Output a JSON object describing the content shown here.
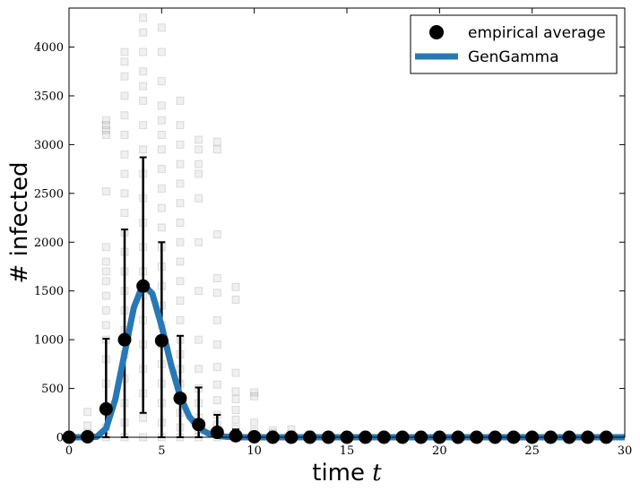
{
  "chart_data": {
    "type": "scatter",
    "xlabel": "time",
    "xlabel_var": "t",
    "ylabel": "# infected",
    "xlim": [
      0,
      30
    ],
    "ylim": [
      0,
      4400
    ],
    "xticks": [
      "0",
      "5",
      "10",
      "15",
      "20",
      "25",
      "30"
    ],
    "yticks": [
      "0",
      "500",
      "1000",
      "1500",
      "2000",
      "2500",
      "3000",
      "3500",
      "4000"
    ],
    "grid": false,
    "legend_position": "top-right",
    "colors": {
      "gengamma": "#2878b5",
      "average": "#000000",
      "samples": "#000000"
    },
    "series": [
      {
        "name": "empirical average",
        "style": "markers",
        "x": [
          0,
          1,
          2,
          3,
          4,
          5,
          6,
          7,
          8,
          9,
          10,
          11,
          12,
          13,
          14,
          15,
          16,
          17,
          18,
          19,
          20,
          21,
          22,
          23,
          24,
          25,
          26,
          27,
          28,
          29
        ],
        "values": [
          0,
          5,
          290,
          1000,
          1550,
          990,
          400,
          130,
          50,
          15,
          5,
          0,
          0,
          0,
          0,
          0,
          0,
          0,
          0,
          0,
          0,
          0,
          0,
          0,
          0,
          0,
          0,
          0,
          0,
          0
        ],
        "err_low": [
          0,
          0,
          0,
          0,
          250,
          0,
          0,
          0,
          0,
          0,
          0,
          0,
          0,
          0,
          0,
          0,
          0,
          0,
          0,
          0,
          0,
          0,
          0,
          0,
          0,
          0,
          0,
          0,
          0,
          0
        ],
        "err_high": [
          0,
          30,
          1010,
          2130,
          2870,
          2000,
          1040,
          510,
          230,
          80,
          20,
          0,
          0,
          0,
          0,
          0,
          0,
          0,
          0,
          0,
          0,
          0,
          0,
          0,
          0,
          0,
          0,
          0,
          0,
          0
        ]
      },
      {
        "name": "GenGamma",
        "style": "line",
        "x": [
          0,
          0.5,
          1,
          1.5,
          2,
          2.5,
          3,
          3.5,
          4,
          4.5,
          5,
          5.5,
          6,
          6.5,
          7,
          7.5,
          8,
          8.5,
          9,
          9.5,
          10,
          11,
          12,
          15,
          20,
          25,
          30
        ],
        "values": [
          0,
          0,
          0,
          5,
          90,
          390,
          860,
          1330,
          1570,
          1470,
          1140,
          750,
          420,
          210,
          95,
          40,
          15,
          5,
          2,
          0,
          0,
          0,
          0,
          0,
          0,
          0,
          0
        ]
      }
    ],
    "samples": [
      {
        "x": 1,
        "values": [
          0,
          40,
          120,
          260
        ]
      },
      {
        "x": 2,
        "values": [
          0,
          100,
          300,
          550,
          800,
          1000,
          1150,
          1300,
          1450,
          1600,
          1700,
          1800,
          1950,
          2520,
          3100,
          3150,
          3200,
          3250
        ]
      },
      {
        "x": 3,
        "values": [
          0,
          150,
          350,
          600,
          850,
          1100,
          1300,
          1500,
          1700,
          1900,
          2100,
          2300,
          2500,
          2700,
          2900,
          3100,
          3300,
          3500,
          3700,
          3850,
          3950
        ]
      },
      {
        "x": 4,
        "values": [
          0,
          200,
          450,
          700,
          950,
          1200,
          1450,
          1700,
          1950,
          2200,
          2450,
          2700,
          2950,
          3200,
          3450,
          3600,
          3750,
          3950,
          4150,
          4300
        ]
      },
      {
        "x": 5,
        "values": [
          0,
          150,
          350,
          550,
          750,
          950,
          1150,
          1350,
          1550,
          1750,
          1950,
          2150,
          2350,
          2550,
          2750,
          2950,
          3100,
          3250,
          3400,
          3650,
          3950,
          4200
        ]
      },
      {
        "x": 6,
        "values": [
          0,
          100,
          250,
          400,
          550,
          700,
          850,
          1000,
          1200,
          1400,
          1600,
          1800,
          2000,
          2200,
          2400,
          2600,
          2800,
          3000,
          3200,
          3450
        ]
      },
      {
        "x": 7,
        "values": [
          0,
          80,
          200,
          350,
          500,
          700,
          1000,
          1500,
          2000,
          2450,
          2700,
          2800,
          2950,
          3050
        ]
      },
      {
        "x": 8,
        "values": [
          0,
          50,
          130,
          230,
          380,
          540,
          720,
          950,
          1200,
          1480,
          1630,
          2080,
          2950,
          3030
        ]
      },
      {
        "x": 9,
        "values": [
          0,
          30,
          90,
          180,
          280,
          390,
          470,
          660,
          1410,
          1540
        ]
      },
      {
        "x": 10,
        "values": [
          0,
          20,
          60,
          150,
          420,
          460
        ]
      },
      {
        "x": 11,
        "values": [
          0,
          15,
          40,
          70
        ]
      },
      {
        "x": 12,
        "values": [
          0,
          10,
          30,
          80
        ]
      },
      {
        "x": 13,
        "values": [
          0,
          10,
          30
        ]
      },
      {
        "x": 14,
        "values": [
          0,
          10
        ]
      },
      {
        "x": 15,
        "values": [
          0,
          10
        ]
      }
    ]
  }
}
